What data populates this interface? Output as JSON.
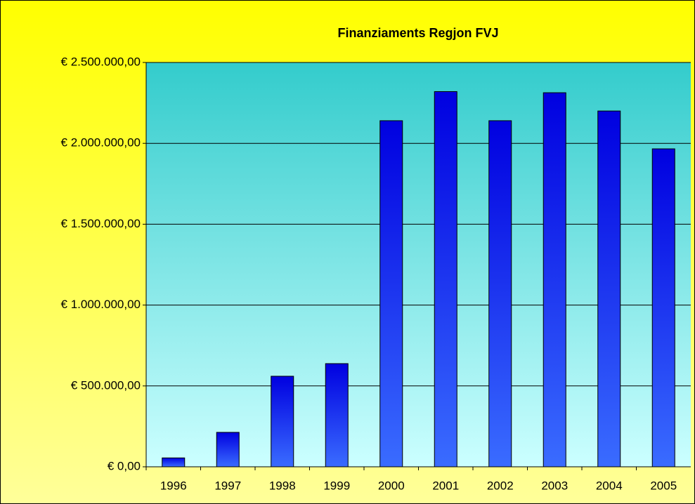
{
  "chart_data": {
    "type": "bar",
    "title": "Finanziaments Regjon FVJ",
    "categories": [
      "1996",
      "1997",
      "1998",
      "1999",
      "2000",
      "2001",
      "2002",
      "2003",
      "2004",
      "2005"
    ],
    "values": [
      55000,
      213000,
      560000,
      638000,
      2140000,
      2320000,
      2140000,
      2313000,
      2200000,
      1966000
    ],
    "color": "#1a1aff",
    "ylim": [
      0,
      2500000
    ],
    "yticks": [
      {
        "value": 0,
        "label": "€ 0,00"
      },
      {
        "value": 500000,
        "label": "€ 500.000,00"
      },
      {
        "value": 1000000,
        "label": "€ 1.000.000,00"
      },
      {
        "value": 1500000,
        "label": "€ 1.500.000,00"
      },
      {
        "value": 2000000,
        "label": "€ 2.000.000,00"
      },
      {
        "value": 2500000,
        "label": "€ 2.500.000,00"
      }
    ],
    "grid": true
  }
}
